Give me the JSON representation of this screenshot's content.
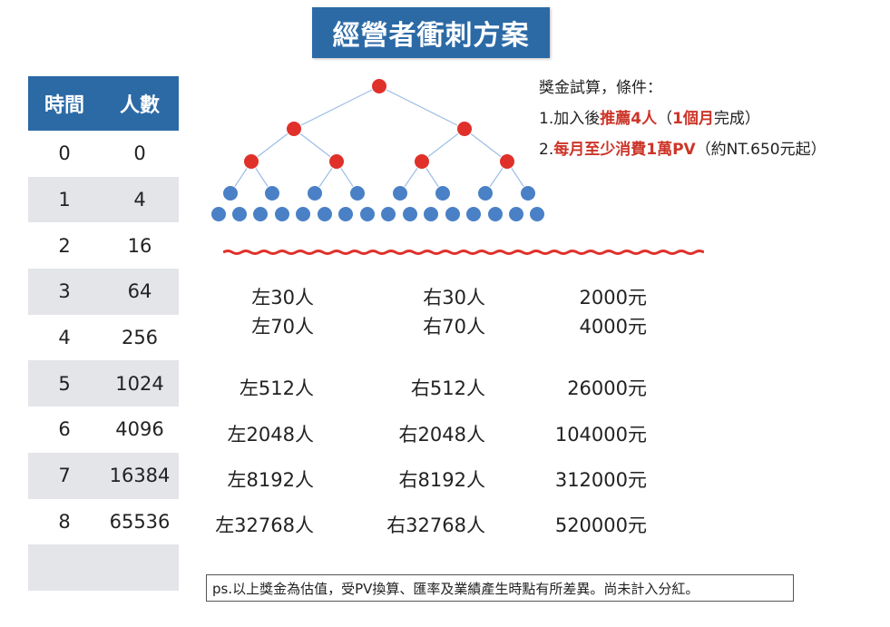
{
  "title": "經營者衝刺方案",
  "table": {
    "header": {
      "time": "時間",
      "people": "人數"
    },
    "rows": [
      {
        "t": "0",
        "p": "0"
      },
      {
        "t": "1",
        "p": "4"
      },
      {
        "t": "2",
        "p": "16"
      },
      {
        "t": "3",
        "p": "64"
      },
      {
        "t": "4",
        "p": "256"
      },
      {
        "t": "5",
        "p": "1024"
      },
      {
        "t": "6",
        "p": "4096"
      },
      {
        "t": "7",
        "p": "16384"
      },
      {
        "t": "8",
        "p": "65536"
      },
      {
        "t": "",
        "p": ""
      }
    ]
  },
  "calc": {
    "heading": "獎金試算，條件：",
    "line1": {
      "prefix": "1.加入後",
      "red1": "推薦4人",
      "mid": "（",
      "red2": "1個月",
      "suffix": "完成）"
    },
    "line2": {
      "prefix": "2.",
      "red": "每月至少消費1萬PV",
      "suffix": "（約NT.650元起）"
    }
  },
  "bonus_rows": [
    {
      "left": "左30人",
      "right": "右30人",
      "amount": "2000元"
    },
    {
      "left": "左70人",
      "right": "右70人",
      "amount": "4000元"
    },
    {
      "left": "左512人",
      "right": "右512人",
      "amount": "26000元"
    },
    {
      "left": "左2048人",
      "right": "右2048人",
      "amount": "104000元"
    },
    {
      "left": "左8192人",
      "right": "右8192人",
      "amount": "312000元"
    },
    {
      "left": "左32768人",
      "right": "右32768人",
      "amount": "520000元"
    }
  ],
  "note": "ps.以上獎金為估值，受PV換算、匯率及業績產生時點有所差異。尚未計入分紅。",
  "colors": {
    "blue": "#2c6aa6",
    "red_node": "#e0302a",
    "blue_node": "#4a80c6",
    "row_alt": "#e3e5e9",
    "red_text": "#cc3529"
  }
}
